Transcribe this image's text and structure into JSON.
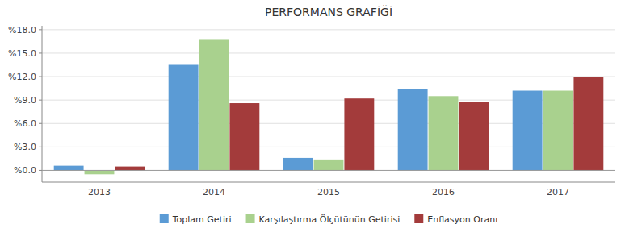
{
  "chart_data": {
    "type": "bar",
    "title": "PERFORMANS GRAFİĞİ",
    "categories": [
      "2013",
      "2014",
      "2015",
      "2016",
      "2017"
    ],
    "series": [
      {
        "name": "Toplam Getiri",
        "color": "#5b9bd5",
        "values": [
          0.6,
          13.5,
          1.6,
          10.4,
          10.2
        ]
      },
      {
        "name": "Karşılaştırma Ölçütünün Getirisi",
        "color": "#a9d18e",
        "values": [
          -0.5,
          16.7,
          1.4,
          9.5,
          10.2
        ]
      },
      {
        "name": "Enflasyon Oranı",
        "color": "#a33b3b",
        "values": [
          0.5,
          8.6,
          9.2,
          8.8,
          12.0
        ]
      }
    ],
    "ylim": [
      -1.5,
      18.5
    ],
    "yticks": [
      {
        "value": 0.0,
        "label": "%0.0"
      },
      {
        "value": 3.0,
        "label": "%3.0"
      },
      {
        "value": 6.0,
        "label": "%6.0"
      },
      {
        "value": 9.0,
        "label": "%9.0"
      },
      {
        "value": 12.0,
        "label": "%12.0"
      },
      {
        "value": 15.0,
        "label": "%15.0"
      },
      {
        "value": 18.0,
        "label": "%18.0"
      }
    ],
    "grid": true,
    "legend": "bottom"
  }
}
